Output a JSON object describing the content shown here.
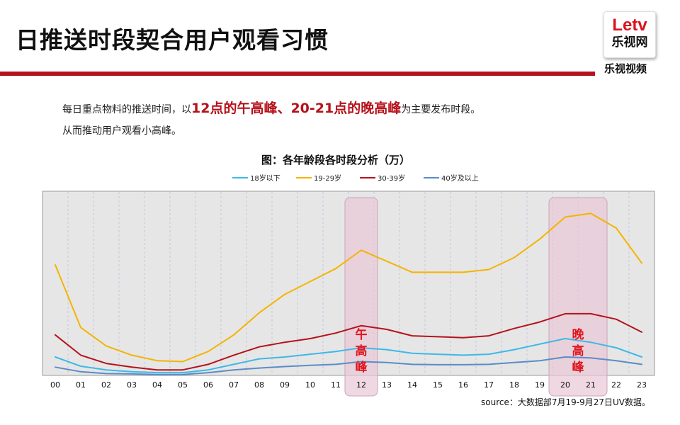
{
  "header": {
    "title": "日推送时段契合用户观看习惯",
    "logo_top": "Letv",
    "logo_bottom": "乐视网",
    "logo_caption": "乐视视频"
  },
  "description": {
    "line1_prefix": "每日重点物料的推送时间，以",
    "line1_highlight": "12点的午高峰、20-21点的晚高峰",
    "line1_suffix": "为主要发布时段。",
    "line2": "从而推动用户观看小高峰。"
  },
  "source_note": "source：大数据部7月19-9月27日UV数据。",
  "chart_data": {
    "type": "line",
    "title": "图：各年龄段各时段分析（万）",
    "x": [
      "00",
      "01",
      "02",
      "03",
      "04",
      "05",
      "06",
      "07",
      "08",
      "09",
      "10",
      "11",
      "12",
      "13",
      "14",
      "15",
      "16",
      "17",
      "18",
      "19",
      "20",
      "21",
      "22",
      "23"
    ],
    "ylim": [
      0,
      100
    ],
    "grid": true,
    "legend_position": "top",
    "series": [
      {
        "name": "18岁以下",
        "color": "#3db9e6",
        "values": [
          10,
          5,
          3,
          2,
          1.5,
          1.5,
          3,
          6,
          9,
          10,
          11.5,
          13,
          15,
          14,
          12,
          11.5,
          11,
          11.5,
          14,
          17,
          20,
          18,
          15,
          10
        ]
      },
      {
        "name": "19-29岁",
        "color": "#f3b400",
        "values": [
          60,
          26,
          16,
          11,
          8,
          7.5,
          13,
          22,
          34,
          44,
          51,
          58,
          68,
          62,
          56,
          56,
          56,
          57.5,
          64,
          74,
          86,
          88,
          80,
          61
        ]
      },
      {
        "name": "30-39岁",
        "color": "#b5121b",
        "values": [
          22,
          11,
          6.5,
          4.5,
          3,
          3,
          6,
          11,
          15.5,
          18,
          20,
          23,
          27,
          25,
          21.5,
          21,
          20.5,
          21.5,
          25.5,
          29,
          33.5,
          33.5,
          30.5,
          23.5
        ]
      },
      {
        "name": "40岁及以上",
        "color": "#5b8cc6",
        "values": [
          4.5,
          2,
          1,
          0.8,
          0.5,
          0.5,
          1.5,
          3,
          4,
          4.8,
          5.5,
          6,
          7.5,
          7,
          6,
          5.8,
          5.8,
          6,
          7,
          8,
          10,
          9.5,
          8,
          6
        ]
      }
    ],
    "highlights": [
      {
        "label": "午高峰",
        "from": "12",
        "to": "12",
        "text": "午高峰"
      },
      {
        "label": "晚高峰",
        "from": "20",
        "to": "21",
        "text": "晚高峰"
      }
    ],
    "highlight_fill": "#e8c8d6",
    "highlight_text_color": "#e0141d"
  }
}
